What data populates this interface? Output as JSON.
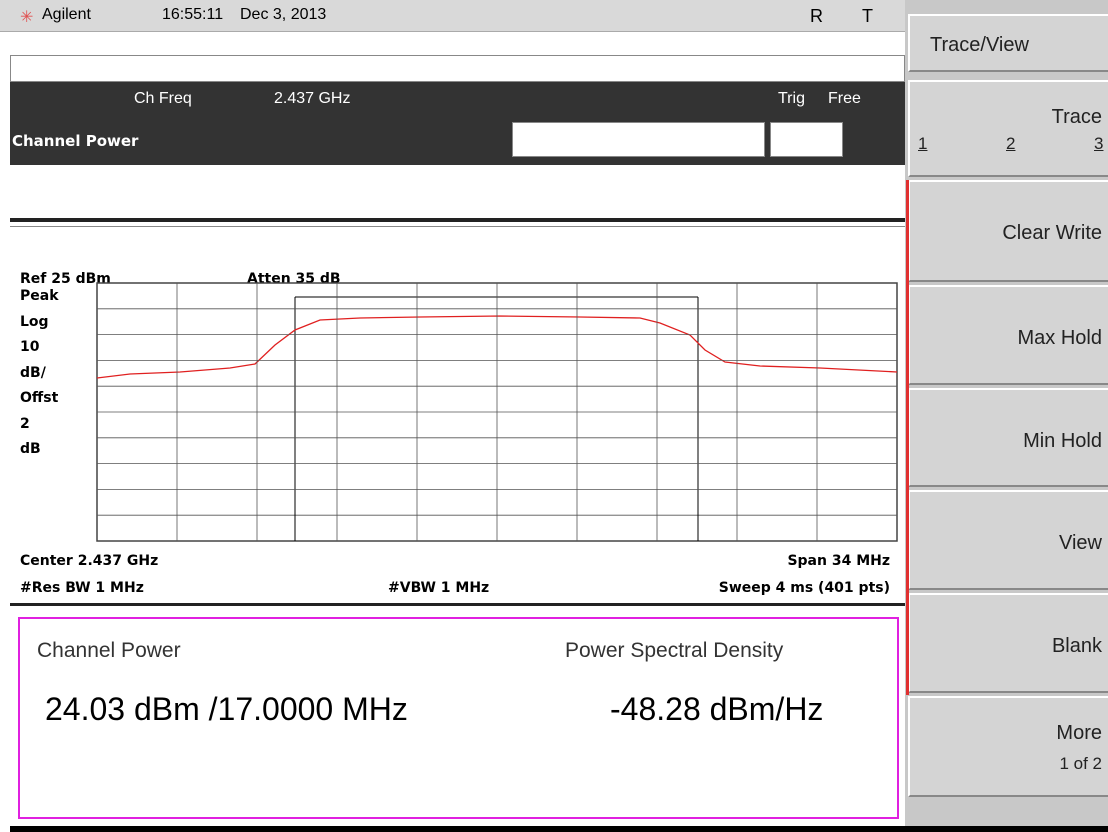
{
  "status_bar": {
    "brand": "Agilent",
    "time": "16:55:11",
    "date": "Dec 3, 2013",
    "flags": [
      "R",
      "T"
    ]
  },
  "header": {
    "ch_freq_label": "Ch Freq",
    "ch_freq": "2.437 GHz",
    "trig_label": "Trig",
    "trig": "Free",
    "mode": "Channel Power"
  },
  "screen": {
    "ref": "Ref 25 dBm",
    "atten": "Atten 35 dB",
    "left_labels": [
      "Peak",
      "Log",
      "10",
      "dB/",
      "Offst",
      "2",
      "dB"
    ],
    "center": "Center 2.437 GHz",
    "span": "Span 34 MHz",
    "res_bw": "#Res BW 1 MHz",
    "vbw": "#VBW 1 MHz",
    "sweep": "Sweep 4 ms (401 pts)"
  },
  "results": {
    "channel_power_label": "Channel Power",
    "channel_power": "24.03 dBm /17.0000 MHz",
    "psd_label": "Power Spectral Density",
    "psd": "-48.28 dBm/Hz"
  },
  "softkeys": {
    "title": "Trace/View",
    "keys": [
      {
        "label": "Trace",
        "sub": [
          "1",
          "2",
          "3"
        ]
      },
      {
        "label": "Clear Write"
      },
      {
        "label": "Max Hold"
      },
      {
        "label": "Min Hold"
      },
      {
        "label": "View"
      },
      {
        "label": "Blank"
      },
      {
        "label": "More",
        "sub": [
          "1 of 2"
        ]
      }
    ]
  }
}
